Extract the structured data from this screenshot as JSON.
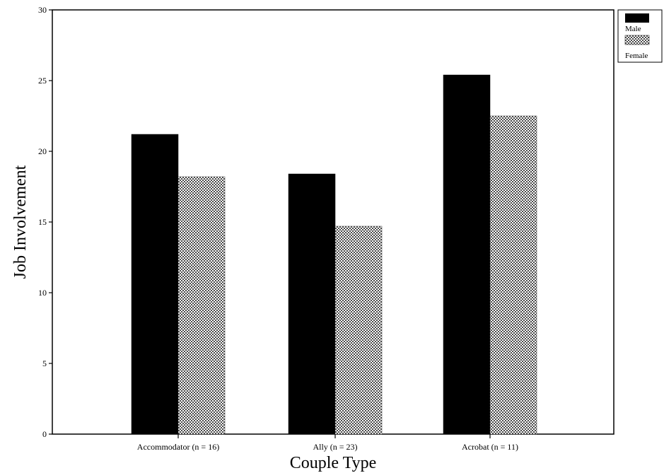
{
  "chart_data": {
    "type": "bar",
    "title": "",
    "xlabel": "Couple Type",
    "ylabel": "Job Involvement",
    "categories": [
      "Accommodator (n = 16)",
      "Ally (n = 23)",
      "Acrobat (n = 11)"
    ],
    "series": [
      {
        "name": "Male",
        "values": [
          21.2,
          18.4,
          25.4
        ],
        "color": "#000000",
        "pattern": "solid"
      },
      {
        "name": "Female",
        "values": [
          18.2,
          14.7,
          22.5
        ],
        "color": "#555555",
        "pattern": "crosshatch"
      }
    ],
    "ylim": [
      0,
      30
    ],
    "yticks": [
      0,
      5,
      10,
      15,
      20,
      25,
      30
    ],
    "grid": false,
    "legend": "top-right"
  }
}
